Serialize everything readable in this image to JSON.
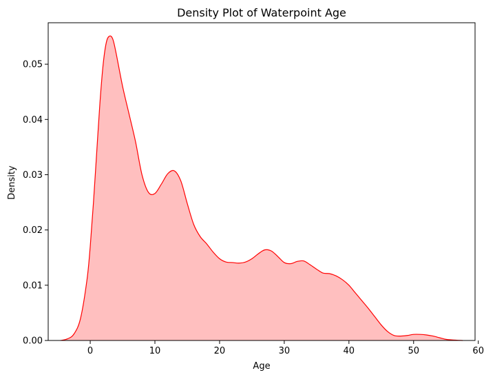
{
  "chart_data": {
    "type": "area",
    "title": "Density Plot of Waterpoint Age",
    "xlabel": "Age",
    "ylabel": "Density",
    "xlim": [
      -6.5,
      59.5
    ],
    "ylim": [
      0,
      0.0575
    ],
    "xticks": [
      0,
      10,
      20,
      30,
      40,
      50,
      60
    ],
    "yticks": [
      0.0,
      0.01,
      0.02,
      0.03,
      0.04,
      0.05
    ],
    "ytick_labels": [
      "0.00",
      "0.01",
      "0.02",
      "0.03",
      "0.04",
      "0.05"
    ],
    "grid": false,
    "legend": "none",
    "line_color": "#ff0000",
    "fill_color": "#ffbfbf",
    "series": [
      {
        "x": [
          -4.6,
          -3.5,
          -2.5,
          -1.5,
          -0.5,
          0.0,
          0.5,
          1.0,
          1.5,
          2.0,
          2.5,
          3.0,
          3.5,
          4.0,
          5.0,
          6.0,
          7.0,
          8.0,
          9.0,
          10.0,
          11.0,
          12.0,
          13.0,
          14.0,
          15.0,
          16.0,
          17.0,
          18.0,
          19.0,
          20.0,
          21.0,
          22.0,
          23.0,
          24.0,
          25.0,
          26.0,
          27.0,
          28.0,
          29.0,
          30.0,
          31.0,
          32.0,
          33.0,
          34.0,
          35.0,
          36.0,
          37.0,
          38.0,
          39.0,
          40.0,
          41.0,
          42.0,
          43.0,
          44.0,
          45.0,
          46.0,
          47.0,
          48.0,
          49.0,
          50.0,
          51.0,
          52.0,
          53.0,
          54.0,
          55.0,
          56.0,
          57.6
        ],
        "y": [
          0.0,
          0.0003,
          0.0012,
          0.004,
          0.011,
          0.017,
          0.025,
          0.034,
          0.043,
          0.05,
          0.054,
          0.0551,
          0.0545,
          0.052,
          0.046,
          0.041,
          0.036,
          0.03,
          0.0268,
          0.0266,
          0.0283,
          0.0302,
          0.0307,
          0.0289,
          0.0248,
          0.021,
          0.0188,
          0.0175,
          0.016,
          0.0148,
          0.0142,
          0.0141,
          0.014,
          0.0142,
          0.0148,
          0.0157,
          0.0164,
          0.0162,
          0.0152,
          0.0141,
          0.0139,
          0.0143,
          0.0144,
          0.0137,
          0.0129,
          0.0122,
          0.0121,
          0.0117,
          0.011,
          0.01,
          0.0086,
          0.0072,
          0.0058,
          0.0043,
          0.0028,
          0.0016,
          0.0009,
          0.0008,
          0.0009,
          0.0011,
          0.0011,
          0.001,
          0.0008,
          0.0005,
          0.0002,
          0.0001,
          0.0
        ]
      }
    ]
  }
}
